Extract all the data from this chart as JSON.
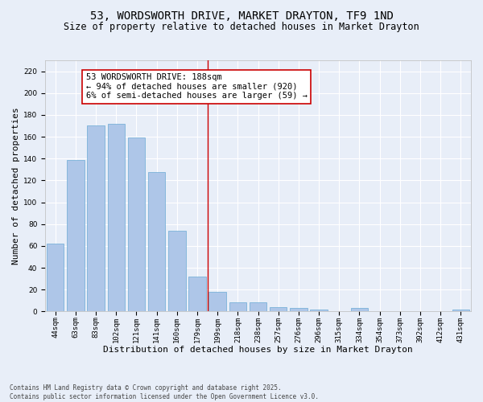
{
  "title": "53, WORDSWORTH DRIVE, MARKET DRAYTON, TF9 1ND",
  "subtitle": "Size of property relative to detached houses in Market Drayton",
  "xlabel": "Distribution of detached houses by size in Market Drayton",
  "ylabel": "Number of detached properties",
  "bar_labels": [
    "44sqm",
    "63sqm",
    "83sqm",
    "102sqm",
    "121sqm",
    "141sqm",
    "160sqm",
    "179sqm",
    "199sqm",
    "218sqm",
    "238sqm",
    "257sqm",
    "276sqm",
    "296sqm",
    "315sqm",
    "334sqm",
    "354sqm",
    "373sqm",
    "392sqm",
    "412sqm",
    "431sqm"
  ],
  "bar_values": [
    62,
    139,
    170,
    172,
    159,
    128,
    74,
    32,
    18,
    8,
    8,
    4,
    3,
    2,
    0,
    3,
    0,
    0,
    0,
    0,
    2
  ],
  "bar_color": "#aec6e8",
  "bar_edge_color": "#6aaad4",
  "background_color": "#e8eef8",
  "grid_color": "#ffffff",
  "vline_x": 7.5,
  "vline_color": "#cc0000",
  "annotation_text": "53 WORDSWORTH DRIVE: 188sqm\n← 94% of detached houses are smaller (920)\n6% of semi-detached houses are larger (59) →",
  "annotation_box_color": "#ffffff",
  "annotation_box_edge": "#cc0000",
  "ylim": [
    0,
    230
  ],
  "yticks": [
    0,
    20,
    40,
    60,
    80,
    100,
    120,
    140,
    160,
    180,
    200,
    220
  ],
  "footnote": "Contains HM Land Registry data © Crown copyright and database right 2025.\nContains public sector information licensed under the Open Government Licence v3.0.",
  "title_fontsize": 10,
  "subtitle_fontsize": 8.5,
  "axis_label_fontsize": 8,
  "tick_fontsize": 6.5,
  "annotation_fontsize": 7.5,
  "footnote_fontsize": 5.5
}
